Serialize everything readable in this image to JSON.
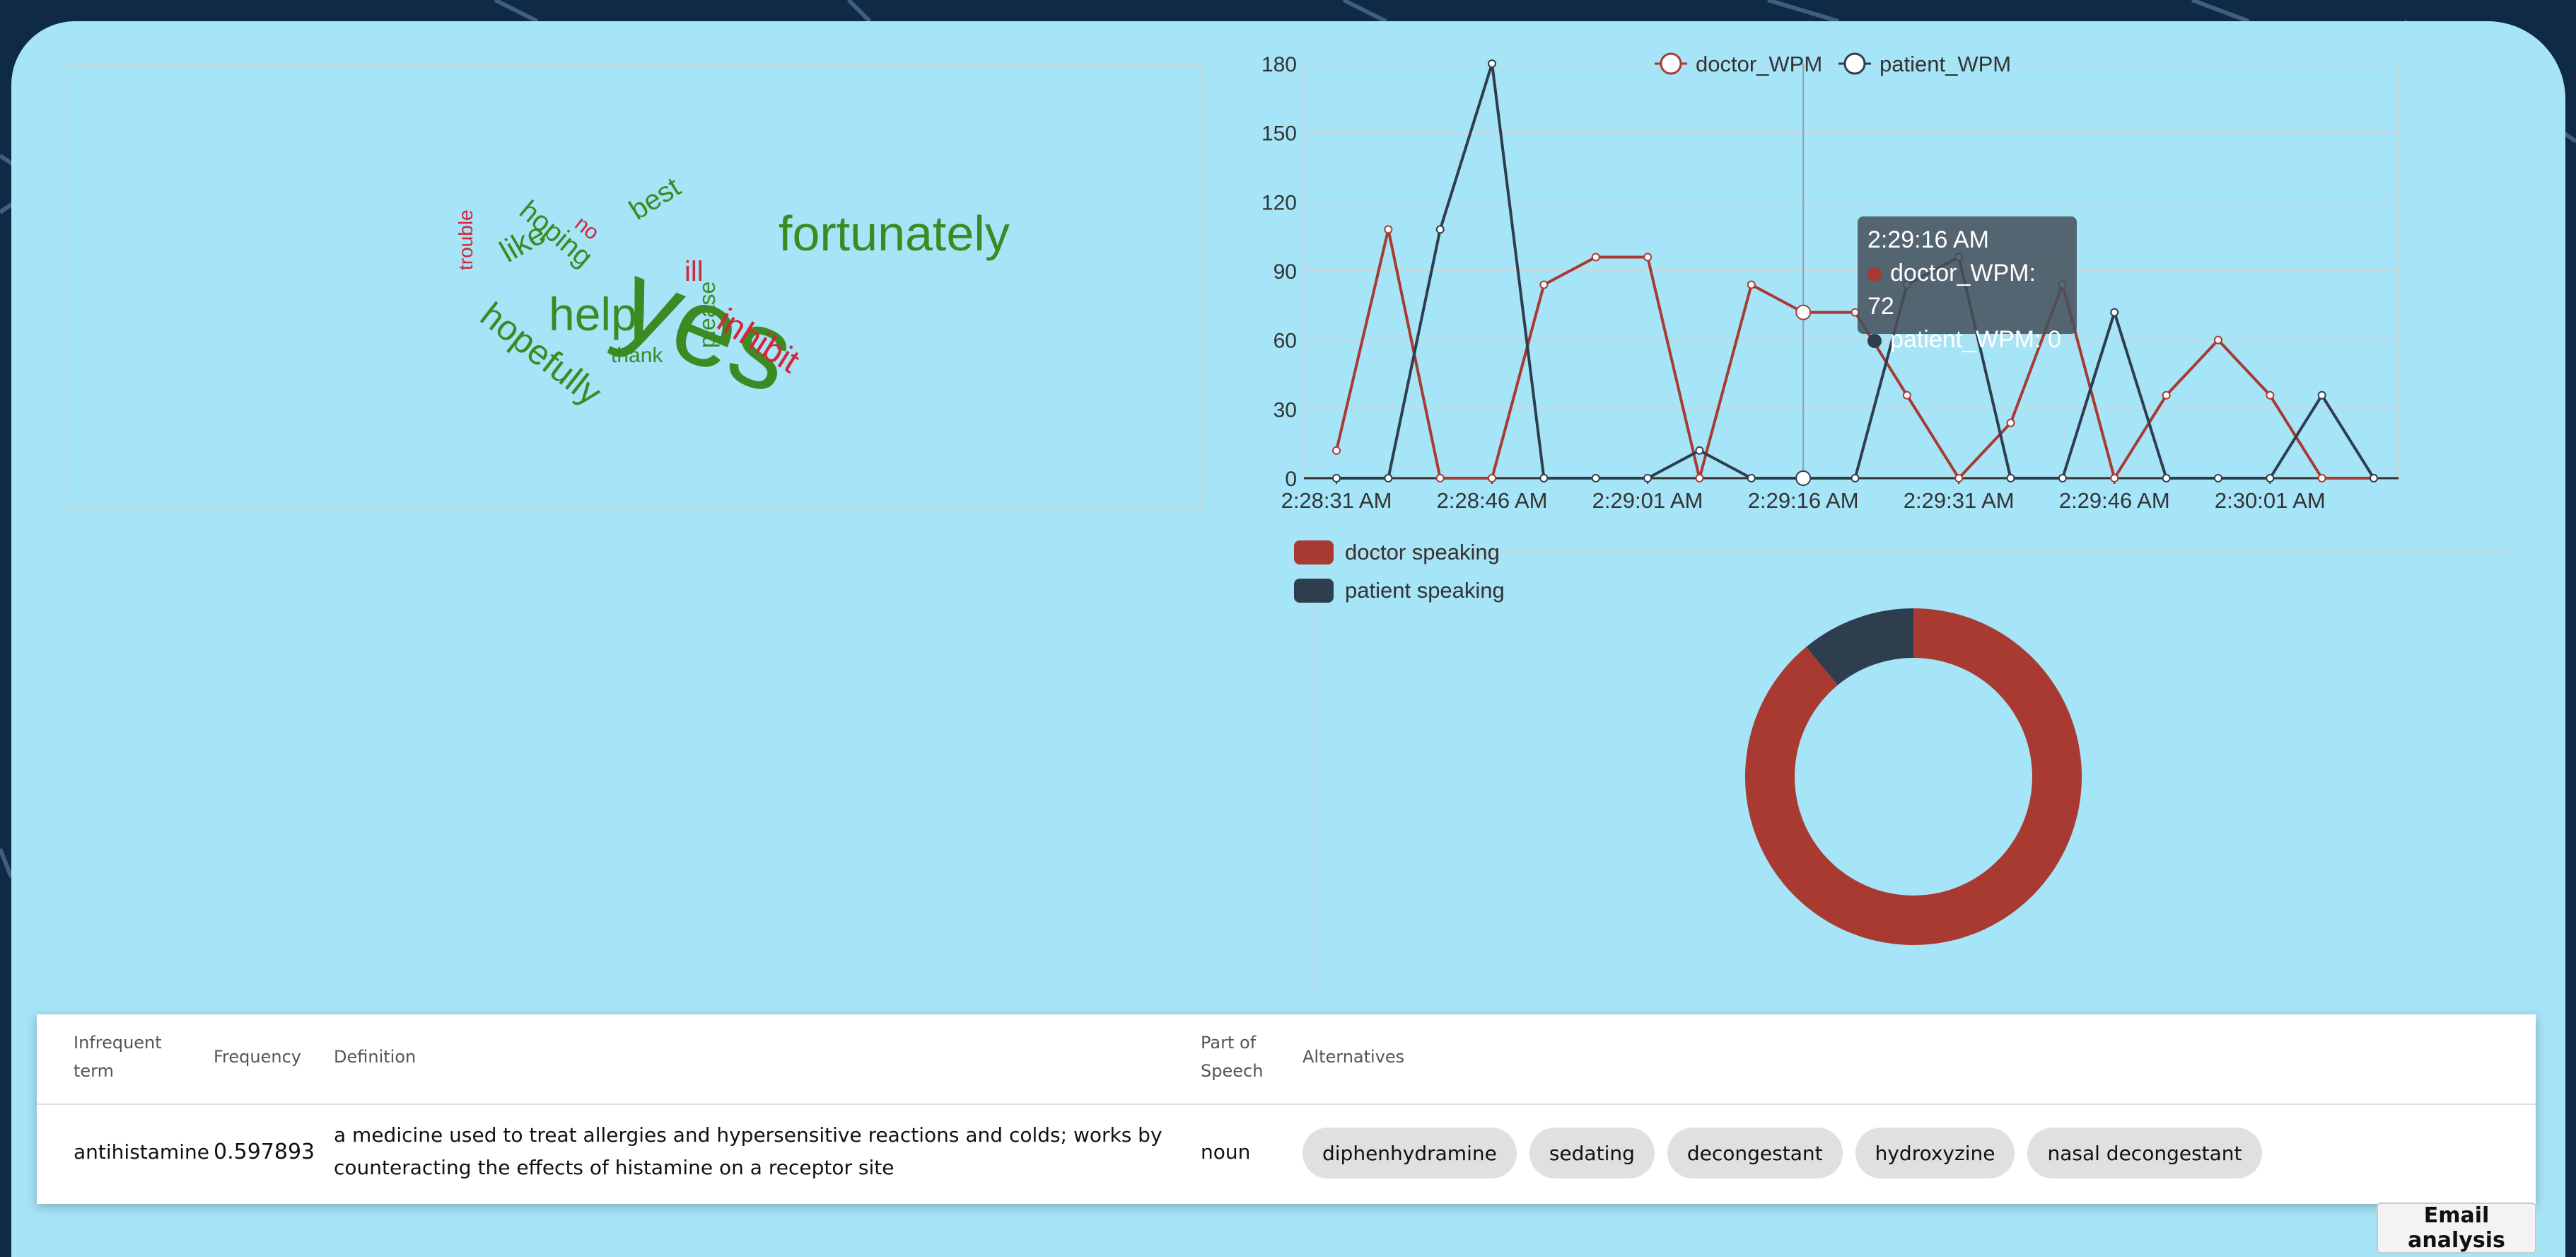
{
  "colors": {
    "doctor": "#a83a32",
    "patient": "#2e3e4f",
    "wordcloud_green": "#3d8a22",
    "wordcloud_red": "#d4253a",
    "panel": "#a6e4f7"
  },
  "wordcloud": {
    "words": [
      {
        "text": "yes",
        "color": "green"
      },
      {
        "text": "fortunately",
        "color": "green"
      },
      {
        "text": "help",
        "color": "green"
      },
      {
        "text": "hopefully",
        "color": "green"
      },
      {
        "text": "like",
        "color": "green"
      },
      {
        "text": "hoping",
        "color": "green"
      },
      {
        "text": "best",
        "color": "green"
      },
      {
        "text": "thank",
        "color": "green"
      },
      {
        "text": "please",
        "color": "green"
      },
      {
        "text": "inhibit",
        "color": "red"
      },
      {
        "text": "ill",
        "color": "red"
      },
      {
        "text": "no",
        "color": "red"
      },
      {
        "text": "trouble",
        "color": "red"
      }
    ]
  },
  "chart_data": [
    {
      "type": "line",
      "x": [
        "2:28:31 AM",
        "2:28:36 AM",
        "2:28:41 AM",
        "2:28:46 AM",
        "2:28:51 AM",
        "2:28:56 AM",
        "2:29:01 AM",
        "2:29:06 AM",
        "2:29:11 AM",
        "2:29:16 AM",
        "2:29:21 AM",
        "2:29:26 AM",
        "2:29:31 AM",
        "2:29:36 AM",
        "2:29:41 AM",
        "2:29:46 AM",
        "2:29:51 AM",
        "2:29:56 AM",
        "2:30:01 AM",
        "2:30:06 AM",
        "2:30:11 AM"
      ],
      "x_tick_labels": [
        "2:28:31 AM",
        "2:28:46 AM",
        "2:29:01 AM",
        "2:29:16 AM",
        "2:29:31 AM",
        "2:29:46 AM",
        "2:30:01 AM"
      ],
      "series": [
        {
          "name": "doctor_WPM",
          "values": [
            12,
            108,
            0,
            0,
            84,
            96,
            96,
            0,
            84,
            72,
            72,
            36,
            0,
            24,
            84,
            0,
            36,
            60,
            36,
            0,
            0
          ]
        },
        {
          "name": "patient_WPM",
          "values": [
            0,
            0,
            108,
            180,
            0,
            0,
            0,
            12,
            0,
            0,
            0,
            84,
            96,
            0,
            0,
            72,
            0,
            0,
            0,
            36,
            0
          ]
        }
      ],
      "ylim": [
        0,
        180
      ],
      "y_ticks": [
        "0",
        "30",
        "60",
        "90",
        "120",
        "150",
        "180"
      ],
      "grid": true,
      "legend_position": "top-center",
      "tooltip": {
        "title": "2:29:16 AM",
        "lines": [
          "doctor_WPM: 72",
          "patient_WPM: 0"
        ]
      }
    },
    {
      "type": "pie",
      "variant": "donut",
      "labels": [
        "doctor speaking",
        "patient speaking"
      ],
      "values": [
        89,
        11
      ],
      "legend_position": "top-left"
    }
  ],
  "table": {
    "headers": {
      "term": "Infrequent term",
      "frequency": "Frequency",
      "definition": "Definition",
      "pos": "Part of Speech",
      "alternatives": "Alternatives"
    },
    "row": {
      "term": "antihistamine",
      "frequency": "0.597893",
      "definition": "a medicine used to treat allergies and hypersensitive reactions and colds; works by counteracting the effects of histamine on a receptor site",
      "pos": "noun",
      "alternatives": [
        "diphenhydramine",
        "sedating",
        "decongestant",
        "hydroxyzine",
        "nasal decongestant"
      ]
    }
  },
  "email_button": "Email analysis"
}
